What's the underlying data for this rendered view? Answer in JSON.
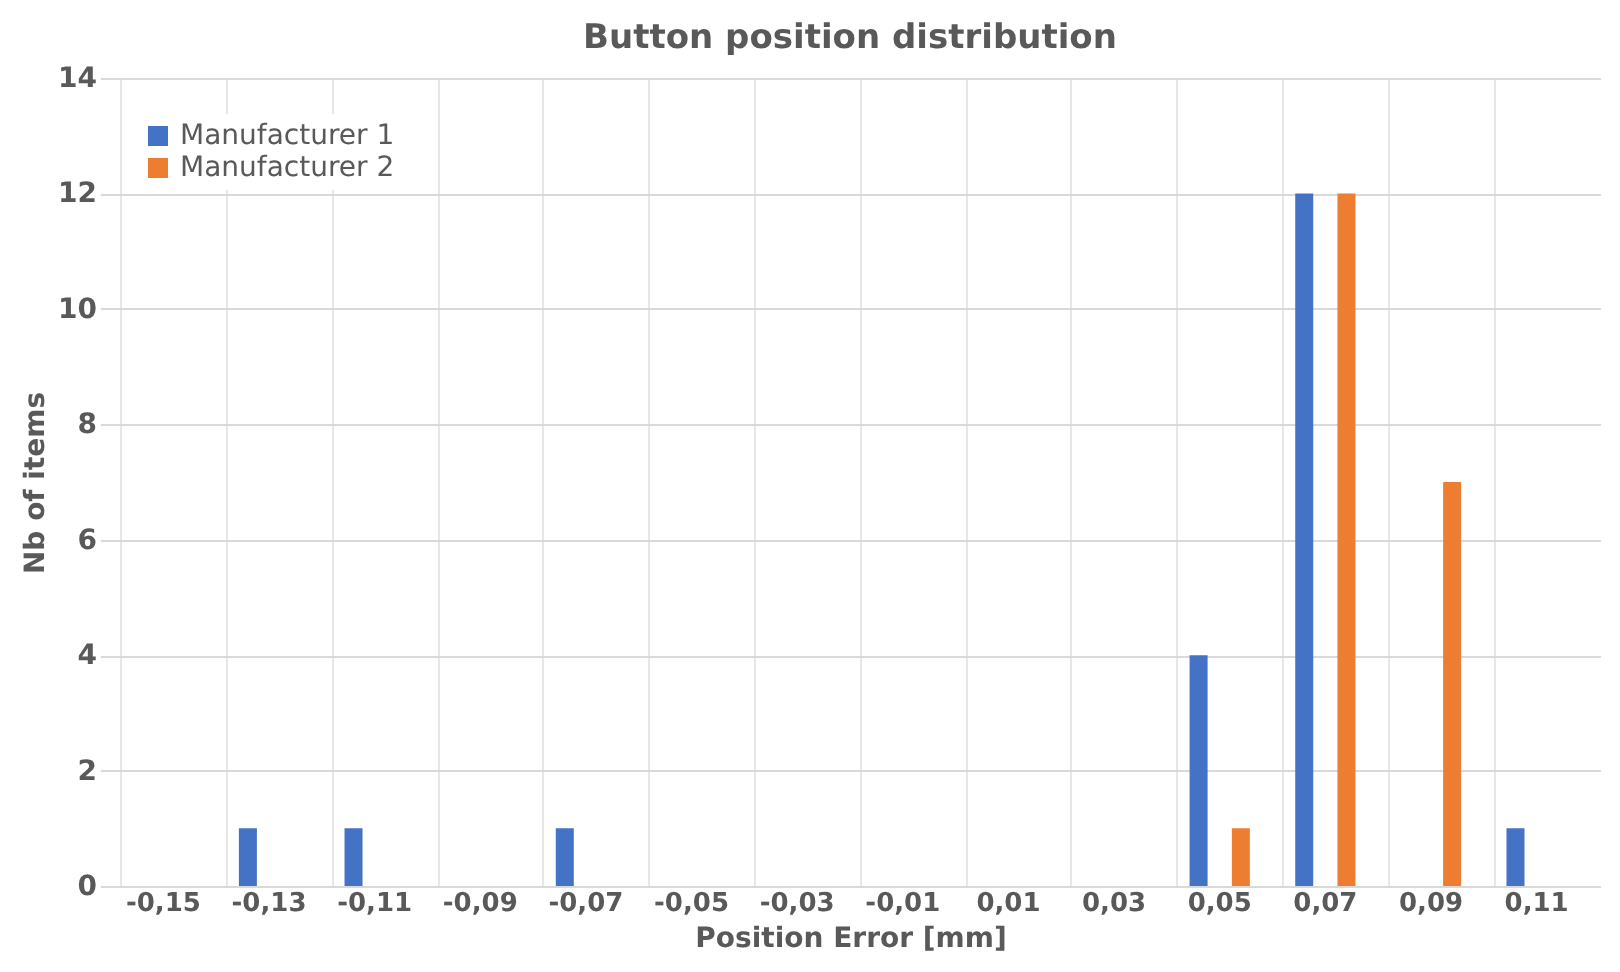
{
  "chart_data": {
    "type": "bar",
    "title": "Button position distribution",
    "xlabel": "Position Error [mm]",
    "ylabel": "Nb of items",
    "categories": [
      "-0,15",
      "-0,13",
      "-0,11",
      "-0,09",
      "-0,07",
      "-0,05",
      "-0,03",
      "-0,01",
      "0,01",
      "0,03",
      "0,05",
      "0,07",
      "0,09",
      "0,11"
    ],
    "series": [
      {
        "name": "Manufacturer 1",
        "color": "#4472c4",
        "values": [
          0,
          1,
          1,
          0,
          1,
          0,
          0,
          0,
          0,
          0,
          4,
          12,
          0,
          1
        ]
      },
      {
        "name": "Manufacturer 2",
        "color": "#ed7d31",
        "values": [
          0,
          0,
          0,
          0,
          0,
          0,
          0,
          0,
          0,
          0,
          1,
          12,
          7,
          0
        ]
      }
    ],
    "ylim": [
      0,
      14
    ],
    "yticks": [
      0,
      2,
      4,
      6,
      8,
      10,
      12,
      14
    ],
    "grid": true,
    "legend": "top left"
  }
}
